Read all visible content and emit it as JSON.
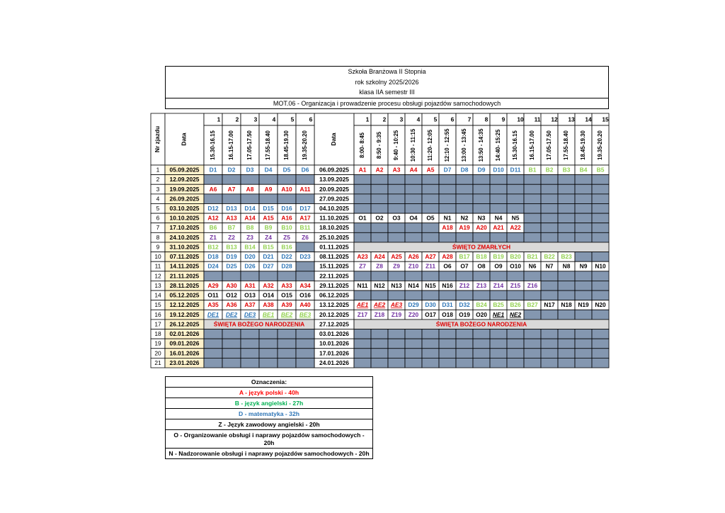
{
  "header": {
    "lines": [
      "Szkoła Branżowa II Stopnia",
      "rok szkolny 2025/2026",
      "klasa IIA semestr III",
      "MOT.06 - Organizacja i prowadzenie procesu obsługi pojazdów samochodowych"
    ]
  },
  "table": {
    "headers": {
      "nr": "Nr zjazdu",
      "fri_date": "Data",
      "sat_date": "Data",
      "fri_numbers": [
        1,
        2,
        3,
        4,
        5,
        6
      ],
      "fri_times": [
        "15.30-16.15",
        "16.15-17.00",
        "17.05-17.50",
        "17.55-18.40",
        "18.45-19.30",
        "19.35-20.20"
      ],
      "sat_numbers": [
        1,
        2,
        3,
        4,
        5,
        6,
        7,
        8,
        9,
        10,
        11,
        12,
        13,
        14,
        15
      ],
      "sat_times": [
        "8:00- 8:45",
        "8:50 - 9:35",
        "9:40 - 10:25",
        "10:30 - 11:15",
        "11:20- 12:05",
        "12:10 - 12:55",
        "13:00 - 13:45",
        "13:50 - 14:35",
        "14:40- 15:25",
        "15.30-16.15",
        "16.15-17.00",
        "17.05-17.50",
        "17.55-18.40",
        "18.45-19.30",
        "19.35-20.20"
      ]
    },
    "colors": {
      "A": "#e00000",
      "B": "#92d050",
      "D": "#2e75b6",
      "Z": "#7030a0",
      "O": "#000000",
      "N": "#000000"
    },
    "rows": [
      {
        "nr": 1,
        "fri_date": "05.09.2025",
        "fri": [
          "D1",
          "D2",
          "D3",
          "D4",
          "D5",
          "D6"
        ],
        "sat_date": "06.09.2025",
        "sat": [
          "A1",
          "A2",
          "A3",
          "A4",
          "A5",
          "D7",
          "D8",
          "D9",
          "D10",
          "D11",
          "B1",
          "B2",
          "B3",
          "B4",
          "B5"
        ]
      },
      {
        "nr": 2,
        "fri_date": "12.09.2025",
        "sat_date": "13.09.2025"
      },
      {
        "nr": 3,
        "fri_date": "19.09.2025",
        "fri": [
          "A6",
          "A7",
          "A8",
          "A9",
          "A10",
          "A11"
        ],
        "sat_date": "20.09.2025"
      },
      {
        "nr": 4,
        "fri_date": "26.09.2025",
        "sat_date": "27.09.2025"
      },
      {
        "nr": 5,
        "fri_date": "03.10.2025",
        "fri": [
          "D12",
          "D13",
          "D14",
          "D15",
          "D16",
          "D17"
        ],
        "sat_date": "04.10.2025"
      },
      {
        "nr": 6,
        "fri_date": "10.10.2025",
        "fri": [
          "A12",
          "A13",
          "A14",
          "A15",
          "A16",
          "A17"
        ],
        "sat_date": "11.10.2025",
        "sat": [
          "O1",
          "O2",
          "O3",
          "O4",
          "O5",
          "N1",
          "N2",
          "N3",
          "N4",
          "N5",
          null,
          null,
          null,
          null,
          null
        ]
      },
      {
        "nr": 7,
        "fri_date": "17.10.2025",
        "fri": [
          "B6",
          "B7",
          "B8",
          "B9",
          "B10",
          "B11"
        ],
        "sat_date": "18.10.2025",
        "sat": [
          null,
          null,
          null,
          null,
          null,
          "A18",
          "A19",
          "A20",
          "A21",
          "A22",
          null,
          null,
          null,
          null,
          null
        ]
      },
      {
        "nr": 8,
        "fri_date": "24.10.2025",
        "fri": [
          "Z1",
          "Z2",
          "Z3",
          "Z4",
          "Z5",
          "Z6"
        ],
        "sat_date": "25.10.2025"
      },
      {
        "nr": 9,
        "fri_date": "31.10.2025",
        "fri": [
          "B12",
          "B13",
          "B14",
          "B15",
          "B16",
          null
        ],
        "sat_date": "01.11.2025",
        "sat_holiday": "ŚWIĘTO ZMARŁYCH"
      },
      {
        "nr": 10,
        "fri_date": "07.11.2025",
        "fri": [
          "D18",
          "D19",
          "D20",
          "D21",
          "D22",
          "D23"
        ],
        "sat_date": "08.11.2025",
        "sat": [
          "A23",
          "A24",
          "A25",
          "A26",
          "A27",
          "A28",
          "B17",
          "B18",
          "B19",
          "B20",
          "B21",
          "B22",
          "B23",
          null,
          null
        ]
      },
      {
        "nr": 11,
        "fri_date": "14.11.2025",
        "fri": [
          "D24",
          "D25",
          "D26",
          "D27",
          "D28",
          null
        ],
        "sat_date": "15.11.2025",
        "sat": [
          "Z7",
          "Z8",
          "Z9",
          "Z10",
          "Z11",
          "O6",
          "O7",
          "O8",
          "O9",
          "O10",
          "N6",
          "N7",
          "N8",
          "N9",
          "N10"
        ]
      },
      {
        "nr": 12,
        "fri_date": "21.11.2025",
        "sat_date": "22.11.2025"
      },
      {
        "nr": 13,
        "fri_date": "28.11.2025",
        "fri": [
          "A29",
          "A30",
          "A31",
          "A32",
          "A33",
          "A34"
        ],
        "sat_date": "29.11.2025",
        "sat": [
          "N11",
          "N12",
          "N13",
          "N14",
          "N15",
          "N16",
          "Z12",
          "Z13",
          "Z14",
          "Z15",
          "Z16",
          null,
          null,
          null,
          null
        ]
      },
      {
        "nr": 14,
        "fri_date": "05.12.2025",
        "fri": [
          "O11",
          "O12",
          "O13",
          "O14",
          "O15",
          "O16"
        ],
        "sat_date": "06.12.2025"
      },
      {
        "nr": 15,
        "fri_date": "12.12.2025",
        "fri": [
          "A35",
          "A36",
          "A37",
          "A38",
          "A39",
          "A40"
        ],
        "sat_date": "13.12.2025",
        "sat": [
          "AE1",
          "AE2",
          "AE3",
          "D29",
          "D30",
          "D31",
          "D32",
          "B24",
          "B25",
          "B26",
          "B27",
          "N17",
          "N18",
          "N19",
          "N20"
        ]
      },
      {
        "nr": 16,
        "fri_date": "19.12.2025",
        "fri": [
          "DE1",
          "DE2",
          "DE3",
          "BE1",
          "BE2",
          "BE3"
        ],
        "sat_date": "20.12.2025",
        "sat": [
          "Z17",
          "Z18",
          "Z19",
          "Z20",
          "O17",
          "O18",
          "O19",
          "O20",
          "NE1",
          "NE2",
          null,
          null,
          null,
          null,
          null
        ]
      },
      {
        "nr": 17,
        "fri_date": "26.12.2025",
        "fri_holiday": "ŚWIĘTA BOŻEGO NARODZENIA",
        "sat_date": "27.12.2025",
        "sat_holiday": "ŚWIĘTA BOŻEGO NARODZENIA"
      },
      {
        "nr": 18,
        "fri_date": "02.01.2026",
        "sat_date": "03.01.2026"
      },
      {
        "nr": 19,
        "fri_date": "09.01.2026",
        "sat_date": "10.01.2026"
      },
      {
        "nr": 20,
        "fri_date": "16.01.2026",
        "sat_date": "17.01.2026"
      },
      {
        "nr": 21,
        "fri_date": "23.01.2026",
        "sat_date": "24.01.2026"
      }
    ]
  },
  "legend": {
    "title": "Oznaczenia:",
    "items": [
      {
        "text": "A - język polski - 40h",
        "color": "#ff0000"
      },
      {
        "text": "B - język angielski - 27h",
        "color": "#00b050"
      },
      {
        "text": "D - matematyka - 32h",
        "color": "#2e75b6"
      },
      {
        "text": "Z - Język zawodowy angielski - 20h",
        "color": "#000000"
      },
      {
        "text": "O - Organizowanie obsługi i naprawy pojazdów samochodowych - 20h",
        "color": "#000000"
      },
      {
        "text": "N - Nadzorowanie obsługi i naprawy pojazdów samochodowych - 20h",
        "color": "#000000"
      }
    ]
  }
}
